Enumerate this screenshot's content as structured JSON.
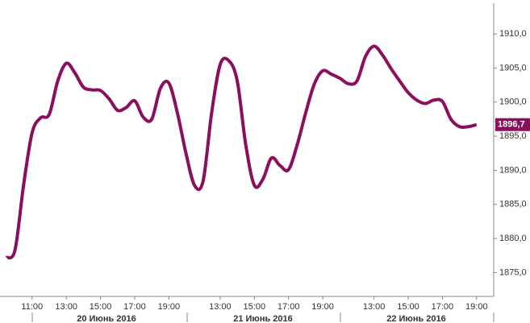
{
  "chart_data": {
    "type": "line",
    "categories": [
      null,
      null,
      null,
      "11:00",
      null,
      null,
      null,
      "13:00",
      null,
      null,
      null,
      "15:00",
      null,
      null,
      null,
      "17:00",
      null,
      null,
      null,
      "19:00",
      null,
      null,
      null,
      null,
      null,
      "13:00",
      null,
      null,
      null,
      "15:00",
      null,
      null,
      null,
      "17:00",
      null,
      null,
      null,
      "19:00",
      null,
      null,
      null,
      null,
      null,
      "13:00",
      null,
      null,
      null,
      "15:00",
      null,
      null,
      null,
      "17:00",
      null,
      null,
      null,
      "19:00"
    ],
    "days": [
      "20 Июнь 2016",
      "21 Июнь 2016",
      "22 Июнь 2016"
    ],
    "series": [
      {
        "color": "#8c0f5e",
        "values": [
          1877.2,
          1878.3,
          1887.8,
          1895.5,
          1897.7,
          1898.2,
          1903.1,
          1905.7,
          1904.3,
          1902.2,
          1901.8,
          1901.7,
          1900.5,
          1898.8,
          1899.2,
          1900.2,
          1897.8,
          1897.5,
          1902.0,
          1902.8,
          1898.4,
          1892.5,
          1887.8,
          1888.4,
          1898.4,
          1905.5,
          1906.1,
          1903.1,
          1893.7,
          1887.8,
          1888.7,
          1891.8,
          1890.7,
          1890.1,
          1893.7,
          1898.4,
          1902.6,
          1904.6,
          1904.1,
          1903.5,
          1902.7,
          1903.1,
          1906.7,
          1908.2,
          1906.9,
          1904.9,
          1903.1,
          1901.4,
          1900.3,
          1899.8,
          1900.3,
          1900.1,
          1897.5,
          1896.4,
          1896.4,
          1896.7
        ],
        "value_labels": [
          null,
          null,
          null,
          null,
          null,
          null,
          null,
          null,
          null,
          null,
          null,
          null,
          null,
          null,
          null,
          null,
          null,
          null,
          null,
          null,
          null,
          null,
          null,
          null,
          null,
          null,
          null,
          null,
          null,
          null,
          null,
          null,
          null,
          null,
          null,
          null,
          null,
          null,
          null,
          null,
          null,
          null,
          null,
          null,
          null,
          null,
          null,
          null,
          null,
          null,
          null,
          null,
          null,
          null,
          null,
          "1896,7"
        ]
      }
    ],
    "ylim": [
      1871.5,
      1913.8
    ],
    "yticks": [
      {
        "value": 1875,
        "label": "1875,0"
      },
      {
        "value": 1880,
        "label": "1880,0"
      },
      {
        "value": 1885,
        "label": "1885,0"
      },
      {
        "value": 1890,
        "label": "1890,0"
      },
      {
        "value": 1895,
        "label": "1895,0"
      },
      {
        "value": 1900,
        "label": "1900,0"
      },
      {
        "value": 1905,
        "label": "1905,0"
      },
      {
        "value": 1910,
        "label": "1910,0"
      }
    ],
    "grid": false
  }
}
